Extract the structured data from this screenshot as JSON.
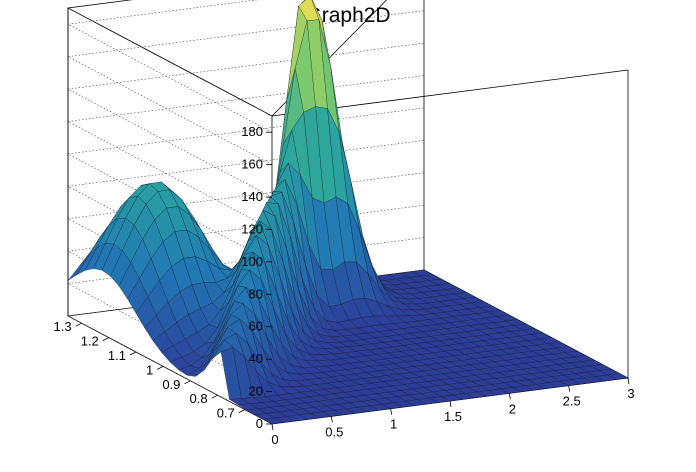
{
  "chart_data": {
    "type": "surface3d",
    "title": "Graph2D",
    "xlabel": "",
    "ylabel": "",
    "zlabel": "",
    "x_range": [
      0,
      3
    ],
    "y_range": [
      0.6,
      1.35
    ],
    "z_range": [
      0,
      190
    ],
    "x_ticks": [
      "0",
      "0.5",
      "1",
      "1.5",
      "2",
      "2.5",
      "3"
    ],
    "y_ticks": [
      "0.7",
      "0.8",
      "0.9",
      "1",
      "1.1",
      "1.2",
      "1.3"
    ],
    "z_ticks": [
      "0",
      "20",
      "40",
      "60",
      "80",
      "100",
      "120",
      "140",
      "160",
      "180"
    ],
    "grid": true,
    "colormap": "viridis-like",
    "colors": {
      "low": "#2c3e9a",
      "mid": "#2aa5a0",
      "high": "#f0e050"
    },
    "surface_features": [
      {
        "region": "back-left ridge",
        "x": [
          0,
          1.0
        ],
        "y": [
          1.0,
          1.35
        ],
        "z_approx": [
          10,
          100
        ]
      },
      {
        "region": "central diagonal ridge",
        "x": [
          0,
          2.0
        ],
        "y": [
          0.8,
          1.35
        ],
        "z_approx": [
          20,
          120
        ]
      },
      {
        "region": "peak",
        "x": [
          1.8,
          2.2
        ],
        "y": [
          1.2,
          1.3
        ],
        "z_approx": [
          150,
          185
        ]
      },
      {
        "region": "flat floor",
        "x": [
          0,
          3
        ],
        "y": [
          0.6,
          0.9
        ],
        "z_approx": [
          0,
          5
        ]
      }
    ]
  }
}
